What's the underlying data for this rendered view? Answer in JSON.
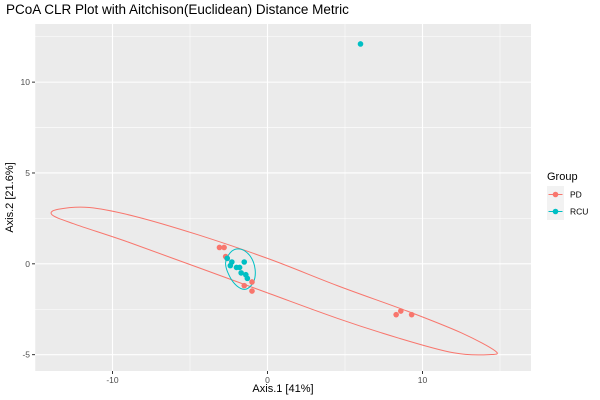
{
  "chart_data": {
    "type": "scatter",
    "title": "PCoA CLR Plot with Aitchison(Euclidean) Distance Metric",
    "xlabel": "Axis.1   [41%]",
    "ylabel": "Axis.2   [21.6%]",
    "xlim": [
      -15,
      17
    ],
    "ylim": [
      -5.9,
      13.2
    ],
    "xticks": [
      -10,
      0,
      10
    ],
    "yticks": [
      -5,
      0,
      5,
      10
    ],
    "xtick_labels": [
      "-10",
      "0",
      "10"
    ],
    "ytick_labels": [
      "-5",
      "0",
      "5",
      "10"
    ],
    "grid": true,
    "legend": {
      "title": "Group",
      "position": "right"
    },
    "series": [
      {
        "name": "PD",
        "color": "#F8766D",
        "points": [
          {
            "x": -3.1,
            "y": 0.9
          },
          {
            "x": -2.8,
            "y": 0.9
          },
          {
            "x": -2.7,
            "y": 0.4
          },
          {
            "x": -2.6,
            "y": 0.3
          },
          {
            "x": -1.5,
            "y": -1.2
          },
          {
            "x": -1.0,
            "y": -1.0
          },
          {
            "x": -1.0,
            "y": -1.5
          },
          {
            "x": 8.3,
            "y": -2.8
          },
          {
            "x": 8.6,
            "y": -2.6
          },
          {
            "x": 9.3,
            "y": -2.8
          }
        ]
      },
      {
        "name": "RCU",
        "color": "#00BFC4",
        "points": [
          {
            "x": 6.0,
            "y": 12.1
          },
          {
            "x": -2.6,
            "y": 0.3
          },
          {
            "x": -2.4,
            "y": -0.1
          },
          {
            "x": -2.3,
            "y": 0.1
          },
          {
            "x": -2.0,
            "y": -0.2
          },
          {
            "x": -1.8,
            "y": -0.2
          },
          {
            "x": -1.7,
            "y": -0.5
          },
          {
            "x": -1.5,
            "y": 0.1
          },
          {
            "x": -1.4,
            "y": -0.6
          },
          {
            "x": -1.3,
            "y": -0.8
          }
        ]
      }
    ],
    "ellipses": [
      {
        "group": "PD",
        "color": "#F8766D",
        "points": [
          [
            -13.5,
            3.0
          ],
          [
            -11.5,
            3.1
          ],
          [
            -8.5,
            2.6
          ],
          [
            -4.5,
            1.6
          ],
          [
            0.0,
            0.3
          ],
          [
            4.5,
            -1.2
          ],
          [
            9.0,
            -2.6
          ],
          [
            12.5,
            -3.8
          ],
          [
            14.7,
            -4.8
          ],
          [
            14.3,
            -5.0
          ],
          [
            12.0,
            -4.9
          ],
          [
            8.5,
            -4.1
          ],
          [
            4.5,
            -3.0
          ],
          [
            0.0,
            -1.6
          ],
          [
            -4.5,
            -0.2
          ],
          [
            -9.0,
            1.2
          ],
          [
            -12.5,
            2.2
          ],
          [
            -13.9,
            2.7
          ],
          [
            -13.5,
            3.0
          ]
        ]
      },
      {
        "group": "RCU",
        "color": "#00BFC4",
        "points": [
          [
            -1.7,
            0.8
          ],
          [
            -1.1,
            0.4
          ],
          [
            -0.8,
            -0.3
          ],
          [
            -0.9,
            -1.0
          ],
          [
            -1.4,
            -1.4
          ],
          [
            -2.0,
            -1.2
          ],
          [
            -2.5,
            -0.6
          ],
          [
            -2.7,
            0.1
          ],
          [
            -2.3,
            0.7
          ],
          [
            -1.7,
            0.8
          ]
        ]
      }
    ]
  }
}
